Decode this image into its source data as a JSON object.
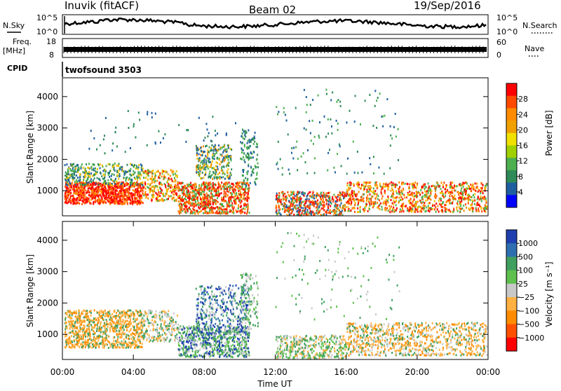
{
  "header": {
    "station": "Inuvik (fitACF)",
    "beam": "Beam 02",
    "date": "19/Sep/2016"
  },
  "top_panels": {
    "nsky_label": "N.Sky",
    "nsearch_label": "N.Search",
    "noise_ticks": [
      "10^5",
      "10^0"
    ],
    "freq_label": "Freq.",
    "freq_unit": "[MHz]",
    "freq_ticks": [
      "18",
      "8"
    ],
    "nave_label": "Nave",
    "nave_ticks": [
      "60",
      "0"
    ],
    "cpid_label": "CPID",
    "cpid_value": "twofsound 3503"
  },
  "chart_data": [
    {
      "type": "heatmap",
      "name": "power",
      "ylabel": "Slant Range [km]",
      "xlabel": "",
      "ylim": [
        200,
        4600
      ],
      "yticks": [
        "4000",
        "3000",
        "2000",
        "1000"
      ],
      "colorbar_label": "Power [dB]",
      "colorbar_ticks": [
        "28",
        "24",
        "20",
        "16",
        "12",
        "8",
        "4"
      ],
      "colorbar_colors": [
        "#ff0000",
        "#ff4a00",
        "#ff8c00",
        "#f0a000",
        "#f0e000",
        "#a0d000",
        "#4caf50",
        "#2e8b57",
        "#1f5fa0",
        "#0000ff"
      ]
    },
    {
      "type": "heatmap",
      "name": "velocity",
      "ylabel": "Slant Range [km]",
      "xlabel": "Time UT",
      "ylim": [
        200,
        4600
      ],
      "yticks": [
        "4000",
        "3000",
        "2000",
        "1000"
      ],
      "xticks": [
        "00:00",
        "04:00",
        "08:00",
        "12:00",
        "16:00",
        "20:00",
        "00:00"
      ],
      "colorbar_label": "Velocity [m s⁻¹]",
      "colorbar_ticks": [
        "1000",
        "500",
        "100",
        "25",
        "−25",
        "−100",
        "−500",
        "−1000"
      ],
      "colorbar_colors": [
        "#1f3fb0",
        "#2e6fb0",
        "#3f9f5f",
        "#5fc04f",
        "#c8c8c8",
        "#ffb040",
        "#ff8c00",
        "#ff5000",
        "#ff0000"
      ]
    }
  ]
}
